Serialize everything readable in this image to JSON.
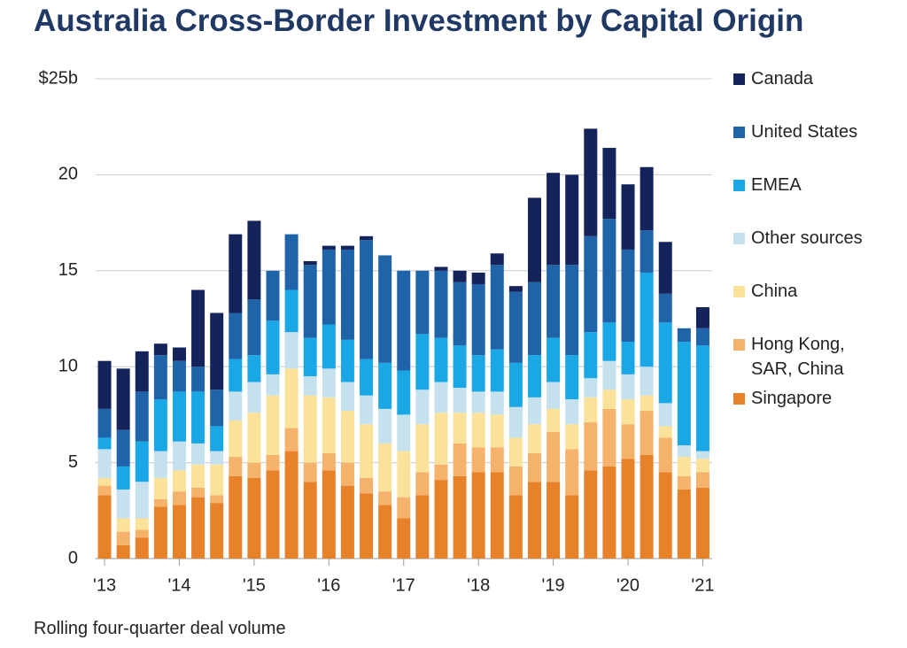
{
  "chart_data": {
    "type": "stacked_bar",
    "title": "Australia Cross-Border Investment by Capital Origin",
    "footnote": "Rolling four-quarter deal volume",
    "categories": [
      "'13",
      null,
      null,
      null,
      "'14",
      null,
      null,
      null,
      "'15",
      null,
      null,
      null,
      "'16",
      null,
      null,
      null,
      "'17",
      null,
      null,
      null,
      "'18",
      null,
      null,
      null,
      "'19",
      null,
      null,
      null,
      "'20",
      null,
      null,
      null,
      "'21"
    ],
    "ylim": [
      0,
      25
    ],
    "yticks": [
      0,
      5,
      10,
      15,
      20,
      {
        "value": 25,
        "label": "$25b"
      }
    ],
    "grid": true,
    "legend": "right",
    "series": [
      {
        "name": "Singapore",
        "color": "#e8822a",
        "values": [
          3.3,
          0.7,
          1.1,
          2.7,
          2.8,
          3.2,
          2.9,
          4.3,
          4.2,
          4.6,
          5.6,
          4.0,
          4.6,
          3.8,
          3.4,
          2.8,
          2.1,
          3.3,
          4.1,
          4.3,
          4.5,
          4.5,
          3.3,
          4.0,
          4.0,
          3.3,
          4.6,
          4.8,
          5.2,
          5.4,
          4.5,
          3.6,
          3.7
        ]
      },
      {
        "name": "Hong Kong, SAR, China",
        "color": "#f5b26b",
        "values": [
          0.5,
          0.7,
          0.4,
          0.4,
          0.7,
          0.5,
          0.4,
          1.0,
          0.8,
          0.8,
          1.2,
          1.0,
          0.9,
          1.2,
          0.8,
          0.7,
          1.1,
          1.2,
          0.8,
          1.7,
          1.3,
          1.3,
          1.5,
          1.5,
          2.6,
          2.4,
          2.5,
          3.0,
          1.8,
          2.3,
          1.8,
          0.7,
          0.8
        ]
      },
      {
        "name": "China",
        "color": "#fbe29a",
        "values": [
          0.4,
          0.7,
          0.6,
          1.1,
          1.1,
          1.2,
          1.6,
          1.9,
          2.6,
          3.1,
          3.1,
          3.5,
          2.9,
          2.7,
          2.8,
          2.5,
          2.4,
          2.5,
          2.7,
          1.6,
          1.8,
          1.7,
          1.5,
          1.5,
          1.2,
          1.3,
          1.3,
          1.0,
          1.3,
          0.8,
          0.6,
          1.0,
          0.7
        ]
      },
      {
        "name": "Other sources",
        "color": "#c5e1ee",
        "values": [
          1.5,
          1.5,
          1.9,
          1.4,
          1.5,
          1.1,
          0.7,
          1.5,
          1.6,
          1.1,
          1.9,
          1.0,
          1.5,
          1.5,
          1.5,
          1.8,
          1.9,
          1.8,
          1.6,
          1.3,
          1.1,
          1.2,
          1.6,
          1.4,
          1.4,
          1.3,
          1.0,
          1.5,
          1.3,
          1.5,
          1.2,
          0.6,
          0.4
        ]
      },
      {
        "name": "EMEA",
        "color": "#1aa7e6",
        "values": [
          0.6,
          1.2,
          2.1,
          2.7,
          2.6,
          2.7,
          1.3,
          1.7,
          1.4,
          2.8,
          2.2,
          2.0,
          2.3,
          2.2,
          1.9,
          2.4,
          2.3,
          2.9,
          2.3,
          2.2,
          1.9,
          2.2,
          2.3,
          2.2,
          2.3,
          2.3,
          2.4,
          2.0,
          1.7,
          4.9,
          4.2,
          5.4,
          5.5
        ]
      },
      {
        "name": "United States",
        "color": "#1f64a8",
        "values": [
          1.5,
          1.9,
          2.6,
          2.3,
          1.6,
          1.3,
          1.9,
          2.4,
          2.9,
          2.6,
          2.9,
          3.8,
          3.9,
          4.7,
          6.2,
          5.6,
          5.2,
          3.3,
          3.5,
          3.3,
          3.7,
          4.4,
          3.7,
          3.8,
          3.8,
          4.7,
          5.0,
          5.4,
          4.8,
          2.2,
          1.5,
          0.7,
          0.9
        ]
      },
      {
        "name": "Canada",
        "color": "#14245a",
        "values": [
          2.5,
          3.2,
          2.1,
          0.6,
          0.7,
          4.0,
          4.0,
          4.1,
          4.1,
          0,
          0,
          0.2,
          0.2,
          0.2,
          0.2,
          0,
          0,
          0,
          0.2,
          0.6,
          0.6,
          0.6,
          0.3,
          4.4,
          4.8,
          4.7,
          5.6,
          3.7,
          3.4,
          3.3,
          2.7,
          0,
          1.1
        ]
      }
    ]
  }
}
